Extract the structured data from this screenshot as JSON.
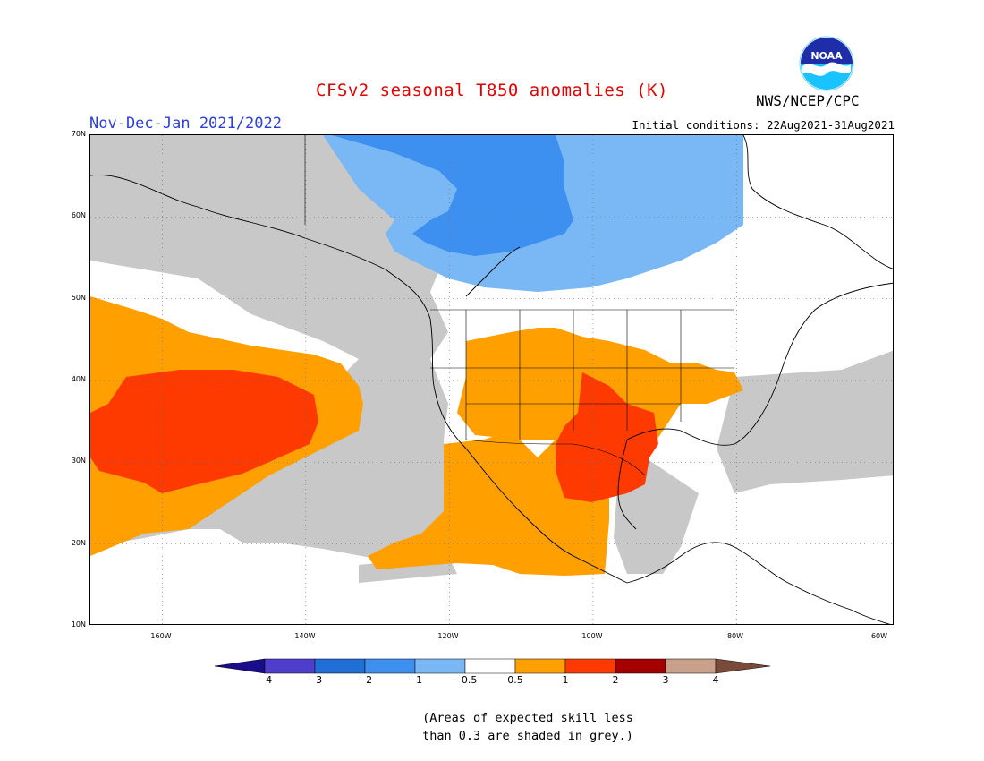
{
  "header": {
    "title": "CFSv2 seasonal T850 anomalies (K)",
    "period": "Nov-Dec-Jan 2021/2022",
    "initial_conditions": "Initial conditions: 22Aug2021-31Aug2021",
    "agency": "NWS/NCEP/CPC",
    "logo_text": "NOAA"
  },
  "map": {
    "lon_range": [
      -172,
      -60
    ],
    "lat_range": [
      10,
      70
    ],
    "lat_labels": [
      "70N",
      "60N",
      "50N",
      "40N",
      "30N",
      "20N",
      "10N"
    ],
    "lon_labels": [
      "160W",
      "140W",
      "120W",
      "100W",
      "80W",
      "60W"
    ],
    "grid": true,
    "projection": "equirectangular"
  },
  "colorbar": {
    "labels": [
      "−4",
      "−3",
      "−2",
      "−1",
      "−0.5",
      "0.5",
      "1",
      "2",
      "3",
      "4"
    ],
    "colors": [
      "#1a0d8c",
      "#4f3dcc",
      "#1f6fd6",
      "#3d8ff0",
      "#7ab8f5",
      "#ffffff",
      "#ffa000",
      "#ff3a00",
      "#a50000",
      "#c9a08a",
      "#7a4a3a"
    ]
  },
  "footnote": {
    "line1": "(Areas of expected skill less",
    "line2": "than 0.3 are shaded in grey.)"
  },
  "colors": {
    "no_skill": "#c8c8c8",
    "cool_weak": "#7ab8f5",
    "cool_mod": "#3d8ff0",
    "warm_weak": "#ffa000",
    "warm_mod": "#ff3a00"
  }
}
